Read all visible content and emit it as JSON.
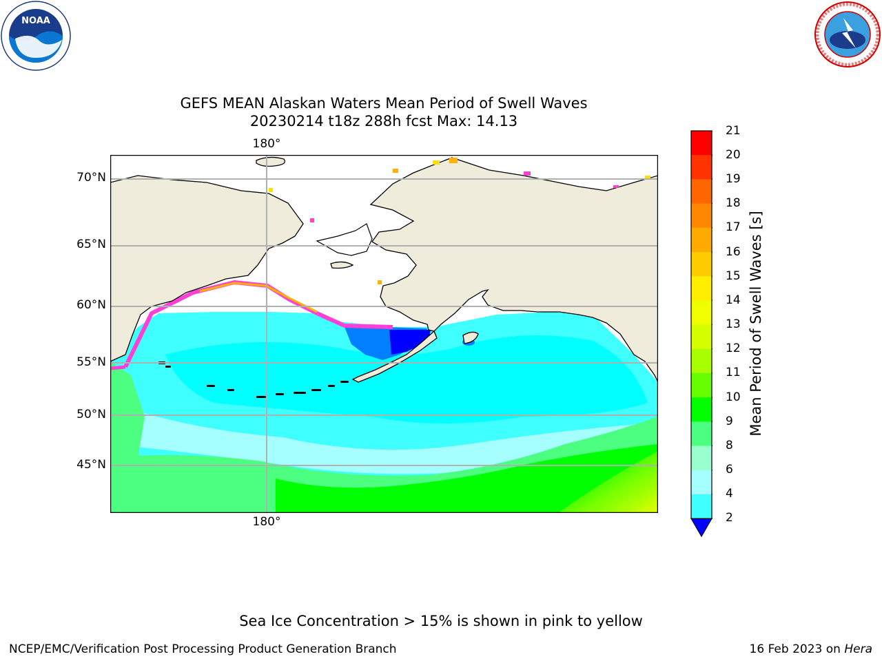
{
  "title": {
    "line1": "GEFS MEAN Alaskan Waters Mean Period of Swell Waves",
    "line2": "20230214 t18z 288h fcst   Max: 14.13"
  },
  "map": {
    "lat_labels": [
      "70°N",
      "65°N",
      "60°N",
      "55°N",
      "50°N",
      "45°N"
    ],
    "lon_top_label": "180°",
    "lon_bottom_label": "180°",
    "colors": {
      "land": "#efecdc",
      "coast": "#000000",
      "grid": "#b0b0b0",
      "ice_pink": "#ff3fd8",
      "ice_yellow": "#ffe000"
    }
  },
  "colorbar": {
    "label": "Mean Period of Swell Waves [s]",
    "ticks": [
      "21",
      "20",
      "19",
      "18",
      "17",
      "16",
      "15",
      "14",
      "13",
      "12",
      "11",
      "10",
      "9",
      "8",
      "6",
      "4",
      "2"
    ],
    "colors_top_to_bottom": [
      "#ff0000",
      "#ff3300",
      "#ff6600",
      "#ff8800",
      "#ffaa00",
      "#ffcc00",
      "#ffee00",
      "#f0ff00",
      "#d6ff00",
      "#a8ff00",
      "#66ff00",
      "#00ff00",
      "#4dff80",
      "#99ffcc",
      "#a6ffff",
      "#40ffff",
      "#00ffff",
      "#0080ff",
      "#0000ff"
    ],
    "extend_color": "#0000ff"
  },
  "logos": {
    "noaa_text": "NOAA",
    "nws_text": "NATIONAL WEATHER SERVICE"
  },
  "footer": {
    "note": "Sea Ice Concentration > 15% is shown in pink to yellow",
    "left": "NCEP/EMC/Verification Post Processing Product Generation Branch",
    "right_date": "16 Feb 2023 on ",
    "right_machine": "Hera"
  }
}
